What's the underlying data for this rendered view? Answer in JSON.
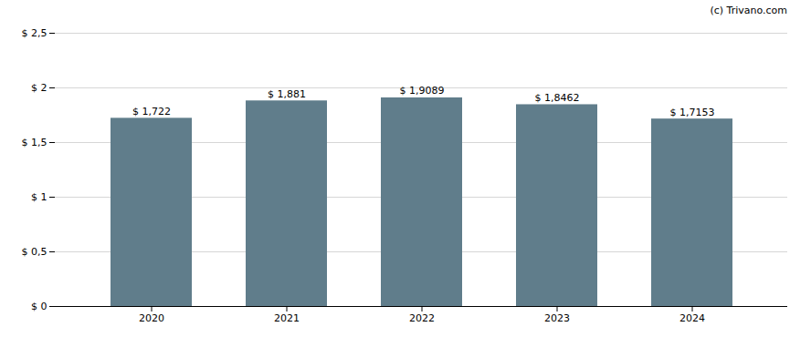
{
  "chart_data": {
    "type": "bar",
    "categories": [
      "2020",
      "2021",
      "2022",
      "2023",
      "2024"
    ],
    "values": [
      1.722,
      1.881,
      1.9089,
      1.8462,
      1.7153
    ],
    "value_labels": [
      "$ 1,722",
      "$ 1,881",
      "$ 1,9089",
      "$ 1,8462",
      "$ 1,7153"
    ],
    "data_labels": true,
    "color": "#607d8b",
    "ylim": [
      0,
      2.5
    ],
    "yticks": [
      {
        "value": 0,
        "label": "$ 0"
      },
      {
        "value": 0.5,
        "label": "$ 0,5"
      },
      {
        "value": 1.0,
        "label": "$ 1"
      },
      {
        "value": 1.5,
        "label": "$ 1,5"
      },
      {
        "value": 2.0,
        "label": "$ 2"
      },
      {
        "value": 2.5,
        "label": "$ 2,5"
      }
    ],
    "grid": true,
    "annotations": [
      "(c) Trivano.com"
    ]
  }
}
